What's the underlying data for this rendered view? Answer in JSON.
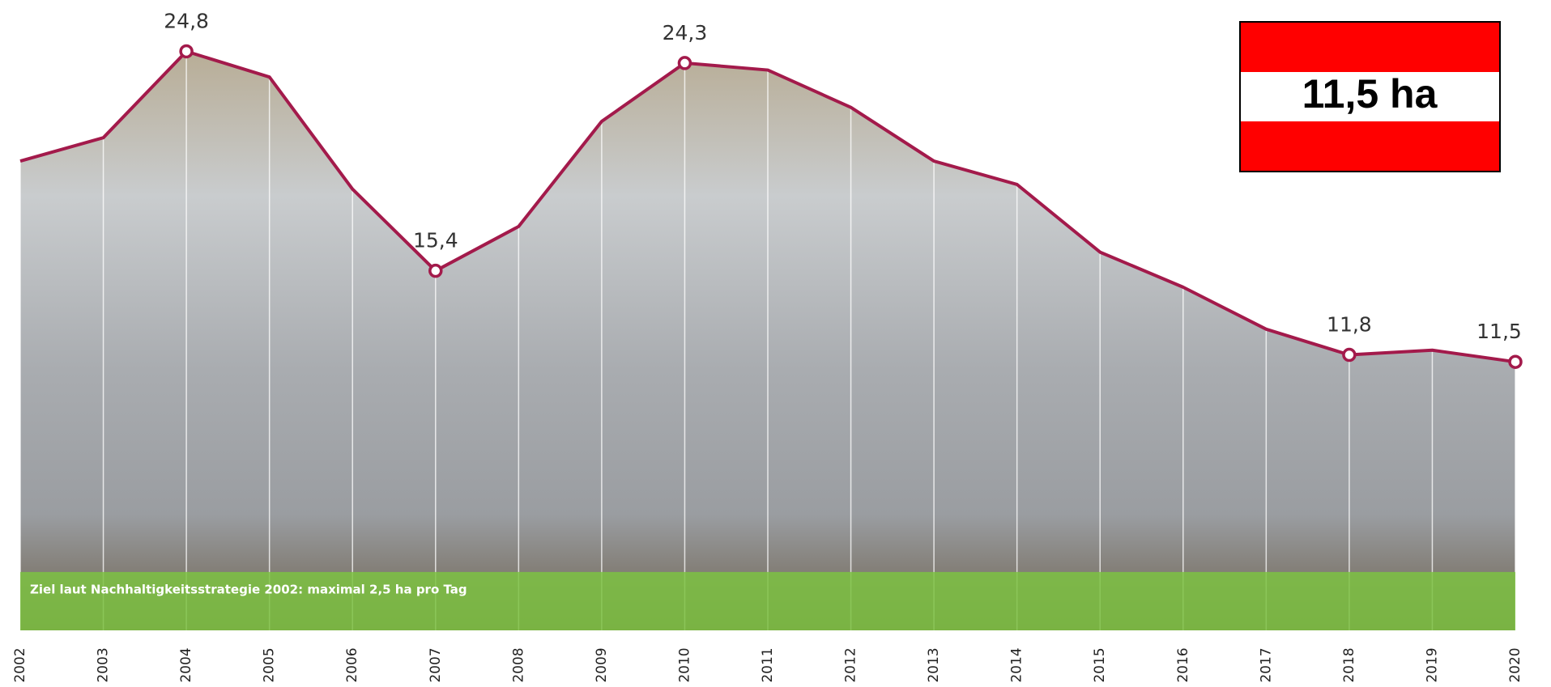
{
  "chart_data": {
    "type": "line",
    "categories": [
      "2002",
      "2003",
      "2004",
      "2005",
      "2006",
      "2007",
      "2008",
      "2009",
      "2010",
      "2011",
      "2012",
      "2013",
      "2014",
      "2015",
      "2016",
      "2017",
      "2018",
      "2019",
      "2020"
    ],
    "series": [
      {
        "color": "#a31a4b",
        "values": [
          20.1,
          21.1,
          24.8,
          23.7,
          18.9,
          15.4,
          17.3,
          21.8,
          24.3,
          24.0,
          22.4,
          20.1,
          19.1,
          16.2,
          14.7,
          12.9,
          11.8,
          12.0,
          11.5
        ],
        "value_labels": [
          null,
          null,
          "24,8",
          null,
          null,
          "15,4",
          null,
          null,
          "24,3",
          null,
          null,
          null,
          null,
          null,
          null,
          null,
          "11,8",
          null,
          "11,5"
        ]
      }
    ],
    "ylim": [
      0,
      27
    ],
    "target": 2.5,
    "target_color": "#7dc242",
    "annotation": "Ziel laut Nachhaltigkeitsstrategie 2002: maximal 2,5 ha pro Tag",
    "badge": "11,5 ha"
  }
}
